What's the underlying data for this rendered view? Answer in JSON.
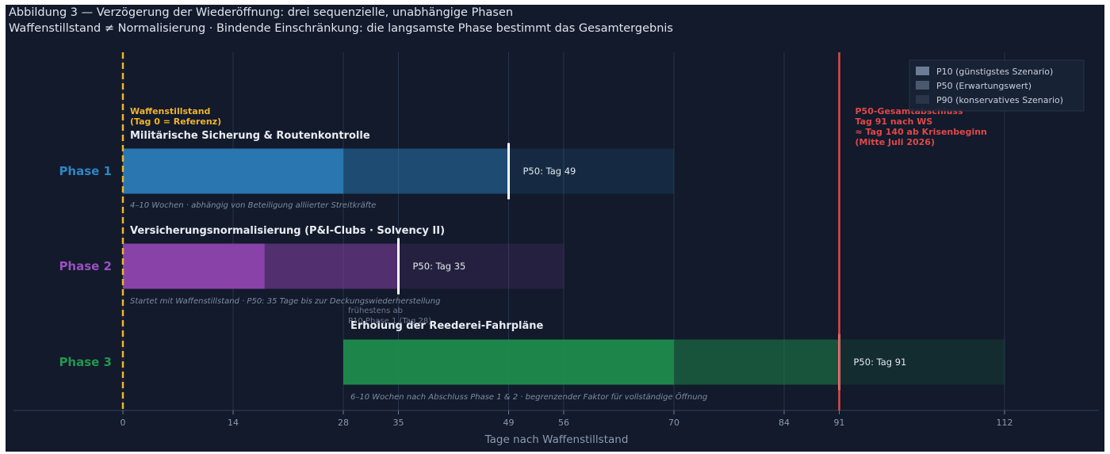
{
  "header": {
    "title": "Abbildung 3 — Verzögerung der Wiederöffnung: drei sequenzielle, unabhängige Phasen",
    "subtitle": "Waffenstillstand ≠ Normalisierung  ·  Bindende Einschränkung: die langsamste Phase bestimmt das Gesamtergebnis"
  },
  "chart_data": {
    "type": "bar",
    "orientation": "horizontal-gantt",
    "xlabel": "Tage nach Waffenstillstand",
    "xlim": [
      0,
      112
    ],
    "xticks": [
      0,
      14,
      28,
      35,
      49,
      56,
      70,
      84,
      91,
      112
    ],
    "grid": "vertical",
    "legend_position": "top-right",
    "legend": [
      {
        "label": "P10  (günstigstes Szenario)",
        "color": "#6b7c94"
      },
      {
        "label": "P50  (Erwartungswert)",
        "color": "#4a5870"
      },
      {
        "label": "P90  (konservatives Szenario)",
        "color": "#2a3548"
      }
    ],
    "phases": [
      {
        "label": "Phase 1",
        "title": "Militärische Sicherung & Routenkontrolle",
        "start": 0,
        "p10": 28,
        "p50": 49,
        "p90": 70,
        "p50_label": "P50: Tag 49",
        "note": "4–10 Wochen  ·  abhängig von Beteiligung alliierter Streitkräfte",
        "color": "#2a7ab5",
        "label_color": "#2e86c1"
      },
      {
        "label": "Phase 2",
        "title": "Versicherungsnormalisierung  (P&I-Clubs · Solvency II)",
        "start": 0,
        "p10": 18,
        "p50": 35,
        "p90": 56,
        "p50_label": "P50: Tag 35",
        "note": "Startet mit Waffenstillstand  ·  P50: 35 Tage bis zur Deckungswiederherstellung",
        "color": "#8e44ad",
        "label_color": "#9b4fc0"
      },
      {
        "label": "Phase 3",
        "title": "Erholung der Reederei-Fahrpläne",
        "start": 28,
        "p10": 70,
        "p50": 91,
        "p90": 112,
        "p50_label": "P50: Tag 91",
        "note": "6–10 Wochen nach Abschluss Phase 1 & 2  ·  begrenzender Faktor für vollständige Öffnung",
        "color": "#1f8a4c",
        "label_color": "#22964f"
      }
    ],
    "annotations": {
      "ceasefire_line": 0,
      "ceasefire_text": [
        "Waffenstillstand",
        "(Tag 0 = Referenz)"
      ],
      "ceasefire_color": "#f0b429",
      "completion_line": 91,
      "completion_text": [
        "P50-Gesamtabschluss",
        "Tag 91 nach WS",
        "≈ Tag 140 ab Krisenbeginn",
        "(Mitte Juli 2026)"
      ],
      "completion_color": "#e04848",
      "phase3_start_text": [
        "frühestens ab",
        "P10 Phase 1 (Tag 28)"
      ]
    }
  }
}
